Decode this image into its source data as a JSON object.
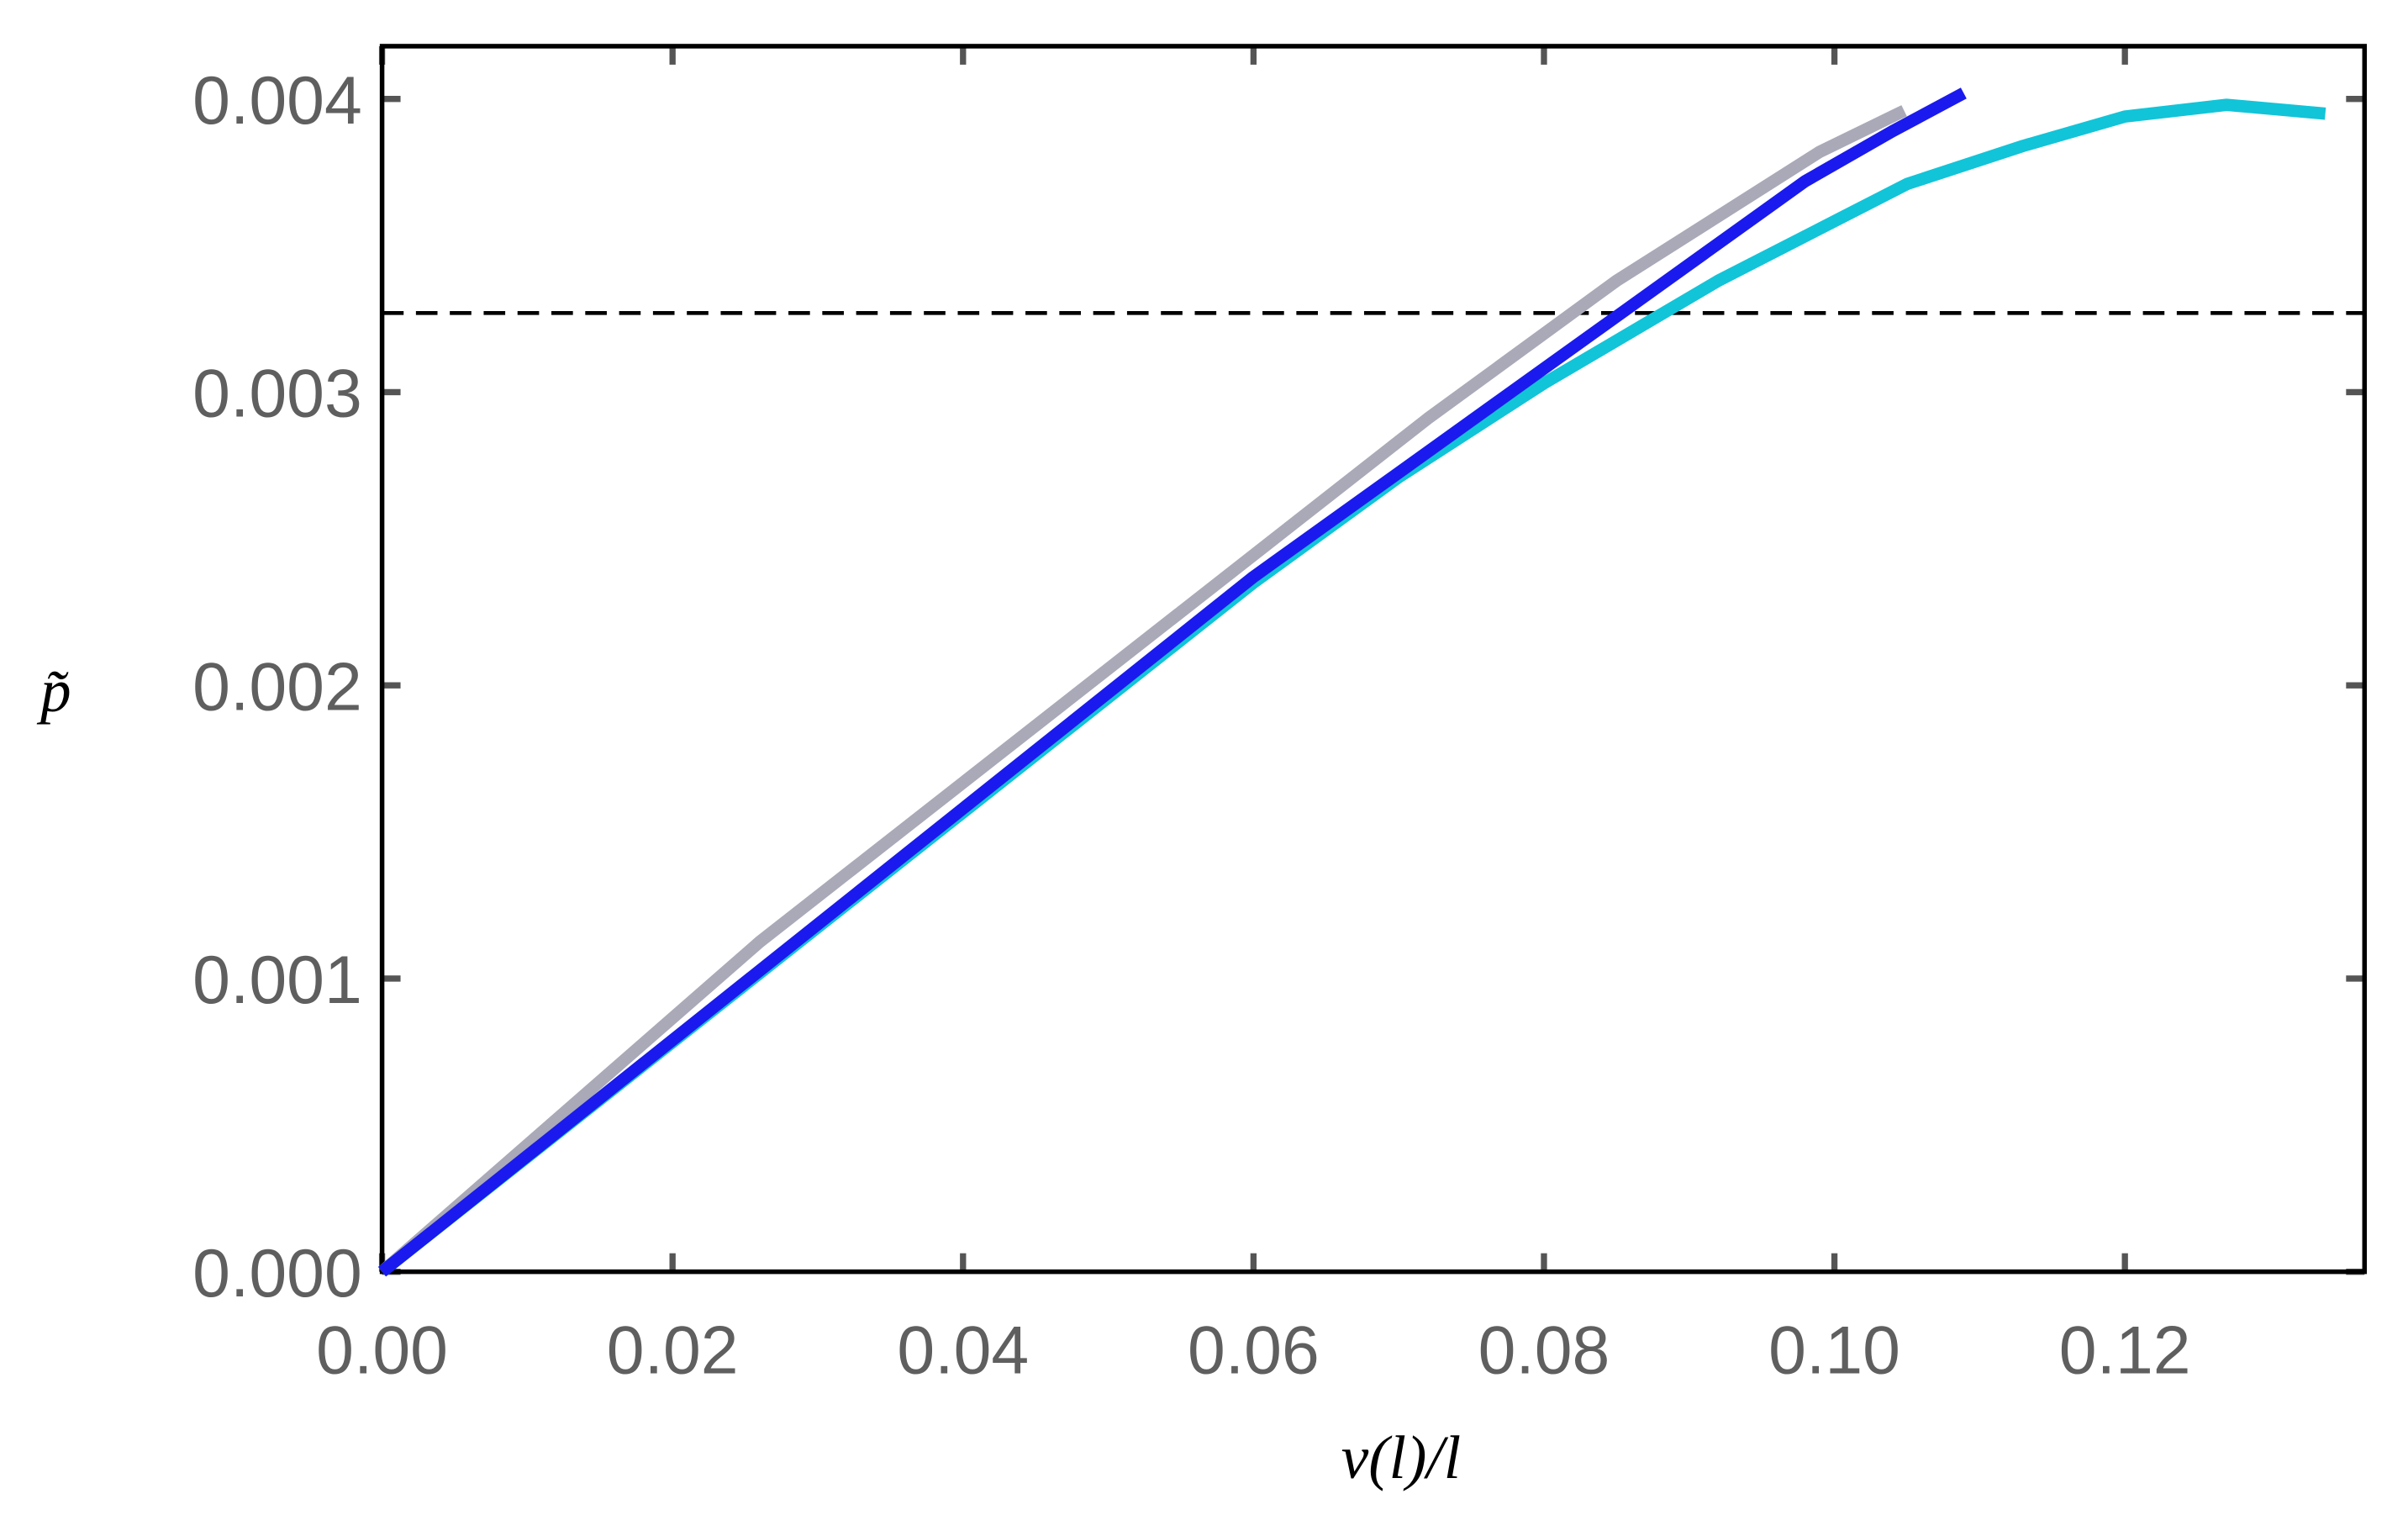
{
  "chart_data": {
    "type": "line",
    "xlabel": "v(l)/l",
    "ylabel": "p̃",
    "xlim": [
      0,
      0.1365
    ],
    "ylim": [
      0,
      0.00418
    ],
    "xticks": [
      {
        "value": 0,
        "label": "0.00"
      },
      {
        "value": 0.02,
        "label": "0.02"
      },
      {
        "value": 0.04,
        "label": "0.04"
      },
      {
        "value": 0.06,
        "label": "0.06"
      },
      {
        "value": 0.08,
        "label": "0.08"
      },
      {
        "value": 0.1,
        "label": "0.10"
      },
      {
        "value": 0.12,
        "label": "0.12"
      }
    ],
    "yticks": [
      {
        "value": 0,
        "label": "0.000"
      },
      {
        "value": 0.001,
        "label": "0.001"
      },
      {
        "value": 0.002,
        "label": "0.002"
      },
      {
        "value": 0.003,
        "label": "0.003"
      },
      {
        "value": 0.004,
        "label": "0.004"
      }
    ],
    "hline": {
      "value": 0.00327,
      "color": "#000000"
    },
    "series": [
      {
        "color": "#a9a9b8",
        "x": [
          0,
          0.026,
          0.072,
          0.085,
          0.099,
          0.1048
        ],
        "values": [
          0,
          0.001125,
          0.00291,
          0.00338,
          0.00382,
          0.00396
        ]
      },
      {
        "color": "#12c4d8",
        "x": [
          0,
          0.06,
          0.07,
          0.08,
          0.092,
          0.105,
          0.113,
          0.12,
          0.127,
          0.1338
        ],
        "values": [
          0,
          0.00235,
          0.00271,
          0.00303,
          0.00338,
          0.00371,
          0.00384,
          0.00394,
          0.00398,
          0.00395
        ]
      },
      {
        "color": "#1a1aee",
        "x": [
          0,
          0.06,
          0.098,
          0.104,
          0.1089
        ],
        "values": [
          0,
          0.00237,
          0.00372,
          0.00389,
          0.00402
        ]
      }
    ]
  }
}
